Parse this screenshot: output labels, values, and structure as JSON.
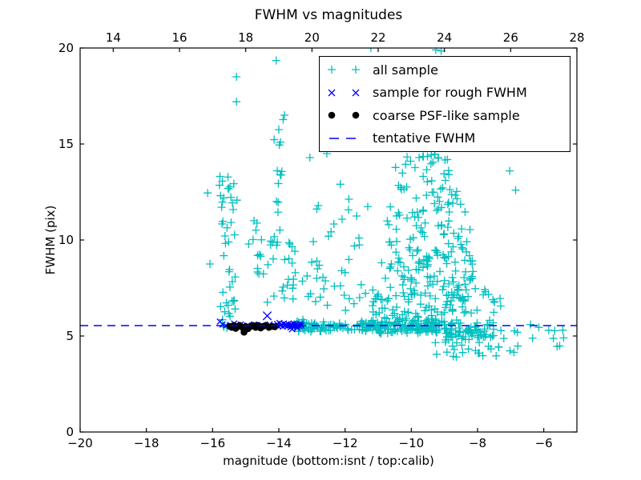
{
  "figure": {
    "title": "FWHM vs magnitudes",
    "xlabel": "magnitude (bottom:isnt / top:calib)",
    "ylabel": "FWHM (pix)"
  },
  "legend": {
    "items": [
      {
        "label": "all sample",
        "marker": "plus",
        "color": "#00bfbf"
      },
      {
        "label": "sample for rough FWHM",
        "marker": "x",
        "color": "#0000ff"
      },
      {
        "label": "coarse PSF-like sample",
        "marker": "dot",
        "color": "#000000"
      },
      {
        "label": "tentative FWHM",
        "marker": "dash",
        "color": "#0000ff"
      }
    ]
  },
  "chart_data": {
    "type": "scatter",
    "title": "FWHM vs magnitudes",
    "xlabel": "magnitude (bottom:isnt / top:calib)",
    "ylabel": "FWHM (pix)",
    "xlim": [
      -20,
      -5
    ],
    "ylim": [
      0,
      20
    ],
    "grid": false,
    "legend_position": "upper right",
    "x_axis_bottom": {
      "name": "isnt magnitude",
      "ticks": [
        -20,
        -18,
        -16,
        -14,
        -12,
        -10,
        -8,
        -6
      ],
      "labels": [
        "−20",
        "−18",
        "−16",
        "−14",
        "−12",
        "−10",
        "−8",
        "−6"
      ]
    },
    "x_axis_top": {
      "name": "calib magnitude",
      "offset_from_bottom": 33,
      "ticks": [
        14,
        16,
        18,
        20,
        22,
        24,
        26,
        28
      ],
      "labels": [
        "14",
        "16",
        "18",
        "20",
        "22",
        "24",
        "26",
        "28"
      ]
    },
    "y_axis": {
      "ticks": [
        0,
        5,
        10,
        15,
        20
      ],
      "labels": [
        "0",
        "5",
        "10",
        "15",
        "20"
      ]
    },
    "tentative_fwhm": 5.54,
    "series": [
      {
        "name": "all sample",
        "marker": "plus",
        "color": "#00bfbf",
        "points": [
          [
            -16.15,
            12.45
          ],
          [
            -16.08,
            8.75
          ],
          [
            -15.28,
            18.5
          ],
          [
            -15.28,
            17.2
          ],
          [
            -14.08,
            19.35
          ],
          [
            -13.83,
            16.5
          ],
          [
            -14.0,
            15.75
          ],
          [
            -13.95,
            15.1
          ],
          [
            -12.55,
            14.5
          ],
          [
            -12.5,
            10.2
          ],
          [
            -12.1,
            8.4
          ],
          [
            -12.0,
            8.3
          ],
          [
            -11.65,
            11.25
          ],
          [
            -11.22,
            20.0
          ],
          [
            -9.26,
            19.9
          ],
          [
            -9.1,
            19.85
          ],
          [
            -7.03,
            13.6
          ],
          [
            -6.85,
            12.6
          ],
          [
            -6.4,
            5.6
          ],
          [
            -6.15,
            5.45
          ],
          [
            -5.85,
            5.3
          ],
          [
            -5.4,
            4.9
          ],
          [
            -6.9,
            4.15
          ]
        ],
        "clusters": [
          {
            "n": 10,
            "m": [
              -15.78,
              -15.45
            ],
            "f": [
              5.4,
              6.6
            ],
            "dist": "uniform"
          },
          {
            "n": 30,
            "m": [
              -15.8,
              -15.3
            ],
            "f": [
              6.2,
              13.4
            ],
            "dist": "uniform"
          },
          {
            "n": 6,
            "m": [
              -15.55,
              -15.25
            ],
            "f": [
              11.0,
              13.4
            ],
            "dist": "uniform"
          },
          {
            "n": 10,
            "m": [
              -14.92,
              -14.5
            ],
            "f": [
              7.3,
              11.4
            ],
            "dist": "uniform"
          },
          {
            "n": 14,
            "m": [
              -14.18,
              -13.85
            ],
            "f": [
              9.0,
              16.3
            ],
            "dist": "uniform"
          },
          {
            "n": 28,
            "m": [
              -14.65,
              -13.5
            ],
            "f": [
              6.0,
              10.0
            ],
            "dist": "uniform"
          },
          {
            "n": 75,
            "m": [
              -13.6,
              -11.4
            ],
            "f": [
              5.1,
              5.9
            ],
            "dist": "band"
          },
          {
            "n": 25,
            "m": [
              -13.35,
              -11.3
            ],
            "f": [
              5.9,
              9.0
            ],
            "dist": "uniform"
          },
          {
            "n": 14,
            "m": [
              -13.2,
              -11.2
            ],
            "f": [
              9.0,
              14.6
            ],
            "dist": "uniform"
          },
          {
            "n": 160,
            "m": [
              -11.5,
              -9.0
            ],
            "f": [
              5.05,
              5.95
            ],
            "dist": "band"
          },
          {
            "n": 90,
            "m": [
              -11.2,
              -8.0
            ],
            "f": [
              5.9,
              7.6
            ],
            "dist": "uniform"
          },
          {
            "n": 80,
            "m": [
              -10.9,
              -8.0
            ],
            "f": [
              7.6,
              9.6
            ],
            "dist": "uniform"
          },
          {
            "n": 55,
            "m": [
              -10.8,
              -8.2
            ],
            "f": [
              9.6,
              12.1
            ],
            "dist": "uniform"
          },
          {
            "n": 30,
            "m": [
              -10.5,
              -8.6
            ],
            "f": [
              12.1,
              14.0
            ],
            "dist": "uniform"
          },
          {
            "n": 14,
            "m": [
              -10.3,
              -8.9
            ],
            "f": [
              14.0,
              14.5
            ],
            "dist": "uniform"
          },
          {
            "n": 70,
            "m": [
              -9.0,
              -7.5
            ],
            "f": [
              4.6,
              6.0
            ],
            "dist": "band"
          },
          {
            "n": 22,
            "m": [
              -9.3,
              -7.0
            ],
            "f": [
              3.9,
              4.7
            ],
            "dist": "uniform"
          },
          {
            "n": 12,
            "m": [
              -7.4,
              -5.3
            ],
            "f": [
              4.4,
              5.7
            ],
            "dist": "uniform"
          },
          {
            "n": 10,
            "m": [
              -8.0,
              -7.3
            ],
            "f": [
              6.0,
              7.6
            ],
            "dist": "uniform"
          }
        ]
      },
      {
        "name": "sample for rough FWHM",
        "marker": "x",
        "color": "#0000ff",
        "points": [
          [
            -15.78,
            5.75
          ],
          [
            -15.7,
            5.6
          ],
          [
            -15.6,
            5.55
          ],
          [
            -15.35,
            5.65
          ],
          [
            -15.15,
            5.6
          ],
          [
            -14.95,
            5.55
          ],
          [
            -14.75,
            5.6
          ],
          [
            -14.5,
            5.55
          ],
          [
            -14.35,
            6.05
          ],
          [
            -14.28,
            5.6
          ],
          [
            -14.15,
            5.5
          ],
          [
            -14.05,
            5.62
          ],
          [
            -14.02,
            5.5
          ],
          [
            -13.98,
            5.68
          ],
          [
            -13.95,
            5.55
          ],
          [
            -13.92,
            5.6
          ],
          [
            -13.88,
            5.5
          ],
          [
            -13.85,
            5.65
          ],
          [
            -13.82,
            5.55
          ],
          [
            -13.78,
            5.6
          ],
          [
            -13.75,
            5.5
          ],
          [
            -13.72,
            5.62
          ],
          [
            -13.68,
            5.55
          ],
          [
            -13.65,
            5.45
          ],
          [
            -13.62,
            5.6
          ],
          [
            -13.58,
            5.52
          ],
          [
            -13.55,
            5.65
          ],
          [
            -13.52,
            5.55
          ],
          [
            -13.48,
            5.6
          ],
          [
            -13.45,
            5.5
          ],
          [
            -13.42,
            5.58
          ],
          [
            -13.38,
            5.52
          ],
          [
            -13.35,
            5.62
          ],
          [
            -13.32,
            5.55
          ],
          [
            -13.6,
            5.35
          ],
          [
            -13.44,
            5.42
          ]
        ]
      },
      {
        "name": "coarse PSF-like sample",
        "marker": "dot",
        "color": "#000000",
        "points": [
          [
            -15.48,
            5.5
          ],
          [
            -15.42,
            5.45
          ],
          [
            -15.36,
            5.55
          ],
          [
            -15.3,
            5.4
          ],
          [
            -15.24,
            5.5
          ],
          [
            -15.18,
            5.55
          ],
          [
            -15.1,
            5.45
          ],
          [
            -15.05,
            5.2
          ],
          [
            -15.0,
            5.5
          ],
          [
            -14.93,
            5.38
          ],
          [
            -14.85,
            5.5
          ],
          [
            -14.78,
            5.55
          ],
          [
            -14.7,
            5.45
          ],
          [
            -14.62,
            5.55
          ],
          [
            -14.55,
            5.42
          ],
          [
            -14.48,
            5.5
          ],
          [
            -14.4,
            5.55
          ],
          [
            -14.3,
            5.45
          ],
          [
            -14.2,
            5.5
          ],
          [
            -14.12,
            5.48
          ]
        ]
      },
      {
        "name": "tentative FWHM",
        "marker": "dashed-line",
        "color": "#0000ff",
        "y": 5.54
      }
    ]
  }
}
